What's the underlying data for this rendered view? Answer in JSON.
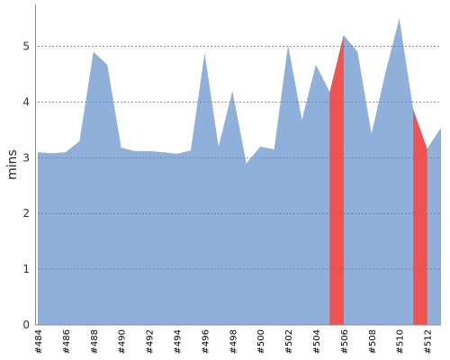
{
  "chart_data": {
    "type": "area",
    "title": "",
    "xlabel": "",
    "ylabel": "mins",
    "ylim": [
      0,
      5.75
    ],
    "yticks": [
      0,
      1,
      2,
      3,
      4,
      5
    ],
    "grid": true,
    "x": [
      "#484",
      "#485",
      "#486",
      "#487",
      "#488",
      "#489",
      "#490",
      "#491",
      "#492",
      "#493",
      "#494",
      "#495",
      "#496",
      "#497",
      "#498",
      "#499",
      "#500",
      "#501",
      "#502",
      "#503",
      "#504",
      "#505",
      "#506",
      "#507",
      "#508",
      "#509",
      "#510",
      "#511",
      "#512",
      "#513"
    ],
    "x_tick_labels": [
      "#484",
      "#486",
      "#488",
      "#490",
      "#492",
      "#494",
      "#496",
      "#498",
      "#500",
      "#502",
      "#504",
      "#506",
      "#508",
      "#510",
      "#512"
    ],
    "series": [
      {
        "values": [
          3.1,
          3.08,
          3.1,
          3.3,
          4.9,
          4.67,
          3.18,
          3.12,
          3.12,
          3.1,
          3.07,
          3.13,
          4.88,
          3.2,
          4.2,
          2.9,
          3.2,
          3.15,
          5.02,
          3.68,
          4.67,
          4.18,
          5.2,
          4.9,
          3.43,
          4.52,
          5.5,
          3.87,
          3.16,
          3.54
        ]
      }
    ],
    "failed_builds": [
      "#505",
      "#511"
    ],
    "colors": {
      "success": "#8fb0da",
      "failed": "#ef5350"
    }
  }
}
